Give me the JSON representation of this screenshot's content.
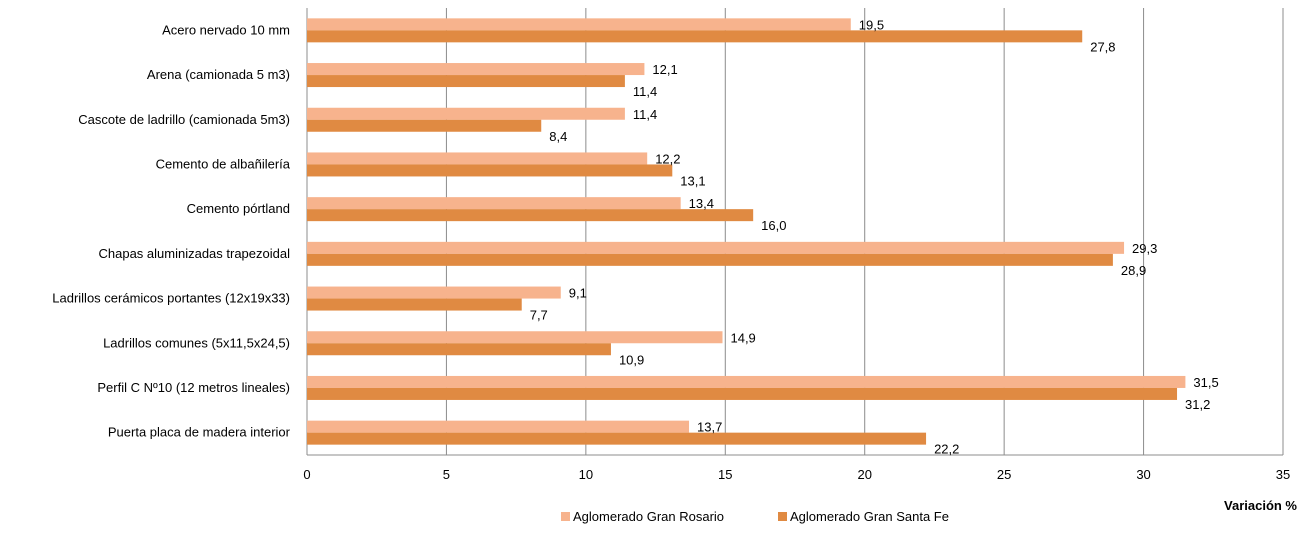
{
  "chart_data": {
    "type": "bar",
    "orientation": "horizontal",
    "categories": [
      "Acero nervado 10 mm",
      "Arena (camionada 5 m3)",
      "Cascote de ladrillo (camionada 5m3)",
      "Cemento de albañilería",
      "Cemento pórtland",
      "Chapas aluminizadas trapezoidal",
      "Ladrillos cerámicos portantes (12x19x33)",
      "Ladrillos comunes (5x11,5x24,5)",
      "Perfil C Nº10 (12 metros  lineales)",
      "Puerta placa de madera interior"
    ],
    "series": [
      {
        "name": "Aglomerado Gran Rosario",
        "color": "#F7B38D",
        "values": [
          19.5,
          12.1,
          11.4,
          12.2,
          13.4,
          29.3,
          9.1,
          14.9,
          31.5,
          13.7
        ],
        "labels": [
          "19,5",
          "12,1",
          "11,4",
          "12,2",
          "13,4",
          "29,3",
          "9,1",
          "14,9",
          "31,5",
          "13,7"
        ]
      },
      {
        "name": "Aglomerado Gran Santa Fe",
        "color": "#E08A42",
        "values": [
          27.8,
          11.4,
          8.4,
          13.1,
          16.0,
          28.9,
          7.7,
          10.9,
          31.2,
          22.2
        ],
        "labels": [
          "27,8",
          "11,4",
          "8,4",
          "13,1",
          "16,0",
          "28,9",
          "7,7",
          "10,9",
          "31,2",
          "22,2"
        ]
      }
    ],
    "xticks": [
      0,
      5,
      10,
      15,
      20,
      25,
      30,
      35
    ],
    "xlim": [
      0,
      35
    ],
    "xlabel": "Variación %",
    "ylabel": "",
    "title": "",
    "grid": "vertical",
    "legend": "bottom-center"
  }
}
